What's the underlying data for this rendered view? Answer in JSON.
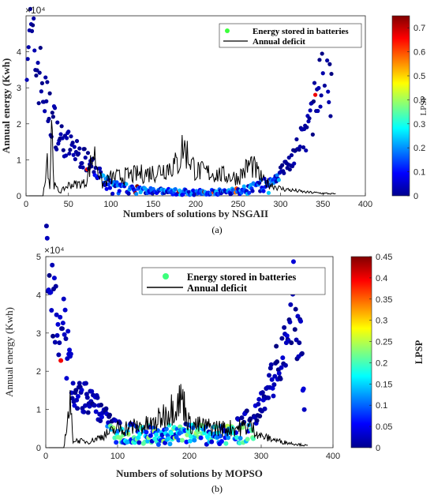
{
  "chart_data": [
    {
      "type": "scatter",
      "panel": "a",
      "caption": "(a)",
      "xlabel": "Numbers of solutions by NSGAII",
      "ylabel": "Annual energy (Kwh)",
      "y_exponent_label": "×10⁴",
      "xlim": [
        0,
        400
      ],
      "ylim": [
        0,
        50000
      ],
      "xticks": [
        "0",
        "50",
        "100",
        "150",
        "200",
        "250",
        "300",
        "350",
        "400"
      ],
      "yticks": [
        "0",
        "1",
        "2",
        "3",
        "4"
      ],
      "legend": {
        "position": "top-right",
        "entries": [
          "Energy stored in batteries",
          "Annual deficit"
        ]
      },
      "colorbar": {
        "label": "LPSP",
        "ticks": [
          "0",
          "0.1",
          "0.2",
          "0.3",
          "0.4",
          "0.5",
          "0.6",
          "0.7"
        ],
        "range": [
          0,
          0.75
        ]
      },
      "series": [
        {
          "name": "Energy stored in batteries",
          "kind": "scatter",
          "n_points": 360,
          "description_of_shape": "U-shaped: ~45000 at x≈0 decaying to ~0 by x≈90, near-zero band x 90–300, rising to ~40000 at x≈350",
          "anchor_points": [
            [
              3,
              46000
            ],
            [
              8,
              40000
            ],
            [
              15,
              35000
            ],
            [
              25,
              25000
            ],
            [
              40,
              16000
            ],
            [
              60,
              12000
            ],
            [
              80,
              8000
            ],
            [
              100,
              3000
            ],
            [
              150,
              1500
            ],
            [
              200,
              1200
            ],
            [
              250,
              1500
            ],
            [
              290,
              4000
            ],
            [
              310,
              9000
            ],
            [
              330,
              17000
            ],
            [
              345,
              30000
            ],
            [
              352,
              39000
            ],
            [
              360,
              27000
            ]
          ]
        },
        {
          "name": "Annual deficit",
          "kind": "line",
          "anchor_points": [
            [
              0,
              0
            ],
            [
              20,
              0
            ],
            [
              25,
              11000
            ],
            [
              28,
              2000
            ],
            [
              30,
              22000
            ],
            [
              33,
              3000
            ],
            [
              40,
              1000
            ],
            [
              50,
              3000
            ],
            [
              70,
              3500
            ],
            [
              80,
              12000
            ],
            [
              90,
              3000
            ],
            [
              100,
              5000
            ],
            [
              150,
              6500
            ],
            [
              180,
              9000
            ],
            [
              185,
              14000
            ],
            [
              200,
              7000
            ],
            [
              250,
              5000
            ],
            [
              265,
              9000
            ],
            [
              280,
              4000
            ],
            [
              300,
              2000
            ],
            [
              330,
              1000
            ],
            [
              365,
              500
            ]
          ]
        }
      ]
    },
    {
      "type": "scatter",
      "panel": "b",
      "caption": "(b)",
      "xlabel": "Numbers of solutions by MOPSO",
      "ylabel": "Annual energy (Kwh)",
      "y_exponent_label": "×10⁴",
      "xlim": [
        0,
        400
      ],
      "ylim": [
        0,
        50000
      ],
      "xticks": [
        "0",
        "100",
        "200",
        "300",
        "400"
      ],
      "yticks": [
        "0",
        "1",
        "2",
        "3",
        "4",
        "5"
      ],
      "legend": {
        "position": "top-right",
        "entries": [
          "Energy stored in batteries",
          "Annual deficit"
        ]
      },
      "colorbar": {
        "label": "LPSP",
        "ticks": [
          "0",
          "0.05",
          "0.1",
          "0.15",
          "0.2",
          "0.25",
          "0.3",
          "0.35",
          "0.4",
          "0.45"
        ],
        "range": [
          0,
          0.45
        ]
      },
      "series": [
        {
          "name": "Energy stored in batteries",
          "kind": "scatter",
          "n_points": 360,
          "description_of_shape": "U-shaped: ~46000 at x≈3 decaying to ~5000 by x≈100, band around 3000–6000 x 100–280, rising to ~38000 at x≈345",
          "anchor_points": [
            [
              3,
              46000
            ],
            [
              8,
              39000
            ],
            [
              15,
              34000
            ],
            [
              25,
              30000
            ],
            [
              40,
              14000
            ],
            [
              60,
              13000
            ],
            [
              80,
              9000
            ],
            [
              100,
              5000
            ],
            [
              150,
              4000
            ],
            [
              200,
              4500
            ],
            [
              250,
              4000
            ],
            [
              290,
              8000
            ],
            [
              310,
              15000
            ],
            [
              330,
              25000
            ],
            [
              345,
              38000
            ],
            [
              355,
              27000
            ],
            [
              360,
              11000
            ]
          ]
        },
        {
          "name": "Annual deficit",
          "kind": "line",
          "anchor_points": [
            [
              0,
              0
            ],
            [
              25,
              0
            ],
            [
              30,
              7000
            ],
            [
              34,
              11000
            ],
            [
              38,
              2000
            ],
            [
              60,
              1500
            ],
            [
              90,
              4000
            ],
            [
              100,
              5000
            ],
            [
              150,
              6000
            ],
            [
              190,
              13000
            ],
            [
              200,
              6000
            ],
            [
              250,
              5000
            ],
            [
              285,
              5500
            ],
            [
              300,
              3000
            ],
            [
              330,
              1500
            ],
            [
              365,
              500
            ]
          ]
        }
      ]
    }
  ]
}
